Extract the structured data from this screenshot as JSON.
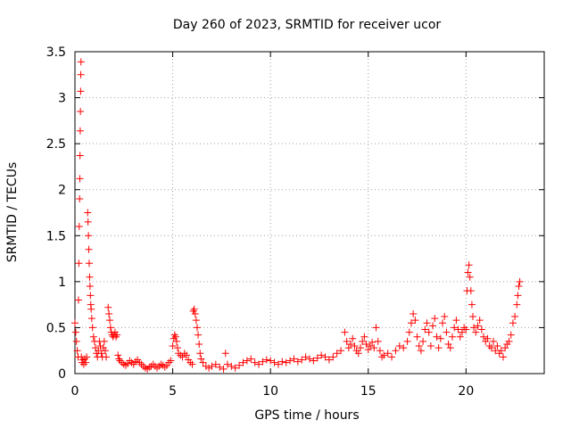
{
  "chart_data": {
    "type": "scatter",
    "title": "Day 260 of 2023, SRMTID for receiver ucor",
    "xlabel": "GPS time / hours",
    "ylabel": "SRMTID / TECUs",
    "xlim": [
      0,
      24
    ],
    "ylim": [
      0,
      3.5
    ],
    "xticks": [
      0,
      5,
      10,
      15,
      20
    ],
    "xtick_labels": [
      "0",
      "5",
      "10",
      "15",
      "20"
    ],
    "yticks": [
      0,
      0.5,
      1,
      1.5,
      2,
      2.5,
      3,
      3.5
    ],
    "ytick_labels": [
      "0",
      "0.5",
      "1",
      "1.5",
      "2",
      "2.5",
      "3",
      "3.5"
    ],
    "grid": true,
    "marker": "+",
    "color": "#ff0000",
    "series": [
      {
        "name": "SRMTID",
        "points": [
          [
            0.0,
            0.55
          ],
          [
            0.04,
            0.45
          ],
          [
            0.08,
            0.35
          ],
          [
            0.12,
            0.25
          ],
          [
            0.16,
            0.18
          ],
          [
            0.18,
            0.8
          ],
          [
            0.2,
            1.2
          ],
          [
            0.22,
            1.6
          ],
          [
            0.24,
            1.9
          ],
          [
            0.25,
            2.12
          ],
          [
            0.26,
            2.37
          ],
          [
            0.27,
            2.64
          ],
          [
            0.28,
            2.85
          ],
          [
            0.29,
            3.07
          ],
          [
            0.3,
            3.25
          ],
          [
            0.31,
            3.39
          ],
          [
            0.33,
            0.18
          ],
          [
            0.36,
            0.12
          ],
          [
            0.4,
            0.15
          ],
          [
            0.45,
            0.1
          ],
          [
            0.5,
            0.16
          ],
          [
            0.55,
            0.12
          ],
          [
            0.6,
            0.18
          ],
          [
            0.65,
            1.75
          ],
          [
            0.67,
            1.65
          ],
          [
            0.69,
            1.5
          ],
          [
            0.71,
            1.35
          ],
          [
            0.73,
            1.2
          ],
          [
            0.75,
            1.05
          ],
          [
            0.77,
            0.95
          ],
          [
            0.79,
            0.85
          ],
          [
            0.81,
            0.75
          ],
          [
            0.83,
            0.7
          ],
          [
            0.86,
            0.6
          ],
          [
            0.9,
            0.5
          ],
          [
            0.95,
            0.4
          ],
          [
            1.0,
            0.35
          ],
          [
            1.05,
            0.28
          ],
          [
            1.1,
            0.22
          ],
          [
            1.15,
            0.18
          ],
          [
            1.2,
            0.25
          ],
          [
            1.25,
            0.35
          ],
          [
            1.3,
            0.3
          ],
          [
            1.35,
            0.22
          ],
          [
            1.4,
            0.18
          ],
          [
            1.45,
            0.28
          ],
          [
            1.5,
            0.35
          ],
          [
            1.55,
            0.25
          ],
          [
            1.6,
            0.18
          ],
          [
            1.7,
            0.72
          ],
          [
            1.74,
            0.65
          ],
          [
            1.78,
            0.58
          ],
          [
            1.82,
            0.5
          ],
          [
            1.86,
            0.45
          ],
          [
            1.9,
            0.42
          ],
          [
            1.95,
            0.4
          ],
          [
            2.0,
            0.42
          ],
          [
            2.05,
            0.45
          ],
          [
            2.1,
            0.4
          ],
          [
            2.15,
            0.42
          ],
          [
            2.2,
            0.2
          ],
          [
            2.25,
            0.16
          ],
          [
            2.3,
            0.14
          ],
          [
            2.4,
            0.12
          ],
          [
            2.5,
            0.1
          ],
          [
            2.6,
            0.09
          ],
          [
            2.7,
            0.11
          ],
          [
            2.8,
            0.14
          ],
          [
            2.9,
            0.12
          ],
          [
            3.0,
            0.1
          ],
          [
            3.1,
            0.13
          ],
          [
            3.2,
            0.15
          ],
          [
            3.3,
            0.12
          ],
          [
            3.4,
            0.1
          ],
          [
            3.5,
            0.08
          ],
          [
            3.6,
            0.06
          ],
          [
            3.7,
            0.05
          ],
          [
            3.8,
            0.07
          ],
          [
            3.9,
            0.08
          ],
          [
            4.0,
            0.1
          ],
          [
            4.1,
            0.08
          ],
          [
            4.2,
            0.06
          ],
          [
            4.3,
            0.08
          ],
          [
            4.4,
            0.1
          ],
          [
            4.5,
            0.09
          ],
          [
            4.6,
            0.07
          ],
          [
            4.7,
            0.09
          ],
          [
            4.8,
            0.12
          ],
          [
            4.9,
            0.14
          ],
          [
            5.0,
            0.3
          ],
          [
            5.05,
            0.38
          ],
          [
            5.1,
            0.42
          ],
          [
            5.15,
            0.4
          ],
          [
            5.2,
            0.35
          ],
          [
            5.25,
            0.28
          ],
          [
            5.3,
            0.22
          ],
          [
            5.4,
            0.2
          ],
          [
            5.5,
            0.18
          ],
          [
            5.6,
            0.22
          ],
          [
            5.7,
            0.2
          ],
          [
            5.8,
            0.15
          ],
          [
            5.9,
            0.12
          ],
          [
            6.0,
            0.1
          ],
          [
            6.05,
            0.68
          ],
          [
            6.1,
            0.7
          ],
          [
            6.15,
            0.65
          ],
          [
            6.2,
            0.58
          ],
          [
            6.25,
            0.5
          ],
          [
            6.3,
            0.42
          ],
          [
            6.35,
            0.32
          ],
          [
            6.4,
            0.22
          ],
          [
            6.45,
            0.16
          ],
          [
            6.55,
            0.12
          ],
          [
            6.7,
            0.08
          ],
          [
            6.85,
            0.06
          ],
          [
            7.0,
            0.08
          ],
          [
            7.2,
            0.1
          ],
          [
            7.4,
            0.07
          ],
          [
            7.6,
            0.05
          ],
          [
            7.7,
            0.22
          ],
          [
            7.8,
            0.1
          ],
          [
            8.0,
            0.08
          ],
          [
            8.2,
            0.06
          ],
          [
            8.4,
            0.09
          ],
          [
            8.6,
            0.12
          ],
          [
            8.8,
            0.14
          ],
          [
            9.0,
            0.16
          ],
          [
            9.2,
            0.12
          ],
          [
            9.4,
            0.1
          ],
          [
            9.6,
            0.13
          ],
          [
            9.8,
            0.15
          ],
          [
            10.0,
            0.14
          ],
          [
            10.2,
            0.12
          ],
          [
            10.4,
            0.1
          ],
          [
            10.6,
            0.13
          ],
          [
            10.8,
            0.12
          ],
          [
            11.0,
            0.14
          ],
          [
            11.2,
            0.16
          ],
          [
            11.4,
            0.13
          ],
          [
            11.6,
            0.15
          ],
          [
            11.8,
            0.18
          ],
          [
            12.0,
            0.16
          ],
          [
            12.2,
            0.14
          ],
          [
            12.4,
            0.17
          ],
          [
            12.6,
            0.2
          ],
          [
            12.8,
            0.18
          ],
          [
            13.0,
            0.15
          ],
          [
            13.2,
            0.18
          ],
          [
            13.4,
            0.22
          ],
          [
            13.6,
            0.25
          ],
          [
            13.8,
            0.45
          ],
          [
            13.9,
            0.35
          ],
          [
            14.0,
            0.28
          ],
          [
            14.1,
            0.32
          ],
          [
            14.2,
            0.38
          ],
          [
            14.3,
            0.3
          ],
          [
            14.4,
            0.25
          ],
          [
            14.5,
            0.22
          ],
          [
            14.6,
            0.28
          ],
          [
            14.7,
            0.35
          ],
          [
            14.8,
            0.4
          ],
          [
            14.9,
            0.32
          ],
          [
            15.0,
            0.26
          ],
          [
            15.1,
            0.3
          ],
          [
            15.2,
            0.34
          ],
          [
            15.3,
            0.28
          ],
          [
            15.4,
            0.5
          ],
          [
            15.5,
            0.35
          ],
          [
            15.6,
            0.25
          ],
          [
            15.7,
            0.18
          ],
          [
            15.8,
            0.2
          ],
          [
            16.0,
            0.22
          ],
          [
            16.2,
            0.18
          ],
          [
            16.4,
            0.25
          ],
          [
            16.6,
            0.3
          ],
          [
            16.8,
            0.28
          ],
          [
            17.0,
            0.35
          ],
          [
            17.1,
            0.45
          ],
          [
            17.2,
            0.55
          ],
          [
            17.3,
            0.65
          ],
          [
            17.4,
            0.58
          ],
          [
            17.5,
            0.4
          ],
          [
            17.6,
            0.3
          ],
          [
            17.7,
            0.25
          ],
          [
            17.8,
            0.35
          ],
          [
            17.9,
            0.48
          ],
          [
            18.0,
            0.55
          ],
          [
            18.1,
            0.45
          ],
          [
            18.2,
            0.3
          ],
          [
            18.3,
            0.52
          ],
          [
            18.4,
            0.6
          ],
          [
            18.5,
            0.4
          ],
          [
            18.6,
            0.28
          ],
          [
            18.7,
            0.38
          ],
          [
            18.8,
            0.55
          ],
          [
            18.9,
            0.62
          ],
          [
            19.0,
            0.45
          ],
          [
            19.1,
            0.32
          ],
          [
            19.2,
            0.28
          ],
          [
            19.3,
            0.4
          ],
          [
            19.4,
            0.5
          ],
          [
            19.5,
            0.58
          ],
          [
            19.6,
            0.48
          ],
          [
            19.7,
            0.4
          ],
          [
            19.8,
            0.45
          ],
          [
            19.9,
            0.5
          ],
          [
            20.0,
            0.48
          ],
          [
            20.05,
            0.9
          ],
          [
            20.1,
            1.1
          ],
          [
            20.15,
            1.18
          ],
          [
            20.2,
            1.05
          ],
          [
            20.25,
            0.9
          ],
          [
            20.3,
            0.75
          ],
          [
            20.35,
            0.62
          ],
          [
            20.4,
            0.5
          ],
          [
            20.5,
            0.45
          ],
          [
            20.6,
            0.52
          ],
          [
            20.7,
            0.58
          ],
          [
            20.8,
            0.48
          ],
          [
            20.9,
            0.4
          ],
          [
            21.0,
            0.35
          ],
          [
            21.1,
            0.38
          ],
          [
            21.2,
            0.3
          ],
          [
            21.3,
            0.28
          ],
          [
            21.4,
            0.35
          ],
          [
            21.5,
            0.25
          ],
          [
            21.6,
            0.3
          ],
          [
            21.7,
            0.22
          ],
          [
            21.8,
            0.25
          ],
          [
            21.9,
            0.18
          ],
          [
            22.0,
            0.28
          ],
          [
            22.1,
            0.32
          ],
          [
            22.2,
            0.35
          ],
          [
            22.3,
            0.42
          ],
          [
            22.4,
            0.55
          ],
          [
            22.5,
            0.62
          ],
          [
            22.6,
            0.75
          ],
          [
            22.65,
            0.85
          ],
          [
            22.7,
            0.95
          ],
          [
            22.75,
            1.0
          ]
        ]
      }
    ]
  }
}
